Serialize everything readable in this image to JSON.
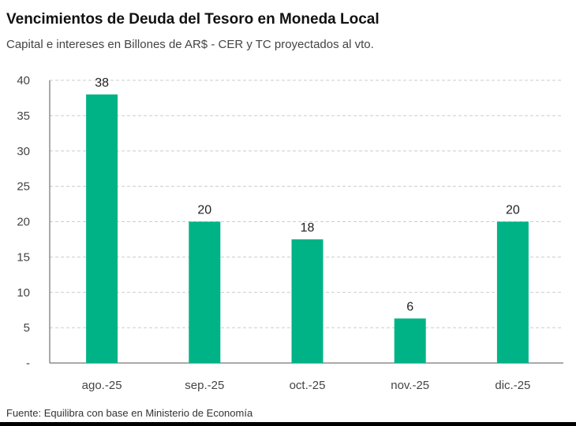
{
  "chart_data": {
    "type": "bar",
    "title": "Vencimientos de Deuda del Tesoro en Moneda Local",
    "subtitle": "Capital e intereses en Billones de AR$ - CER y TC proyectados al vto.",
    "categories": [
      "ago.-25",
      "sep.-25",
      "oct.-25",
      "nov.-25",
      "dic.-25"
    ],
    "values": [
      38,
      20,
      17.5,
      6.3,
      20
    ],
    "data_labels": [
      "38",
      "20",
      "18",
      "6",
      "20"
    ],
    "ylim": [
      0,
      40
    ],
    "yticks": [
      0,
      5,
      10,
      15,
      20,
      25,
      30,
      35,
      40
    ],
    "ytick_labels": [
      "-",
      "5",
      "10",
      "15",
      "20",
      "25",
      "30",
      "35",
      "40"
    ],
    "xlabel": "",
    "ylabel": "",
    "grid": true,
    "bar_color": "#00b386",
    "source": "Fuente: Equilibra con base en Ministerio de Economía"
  }
}
